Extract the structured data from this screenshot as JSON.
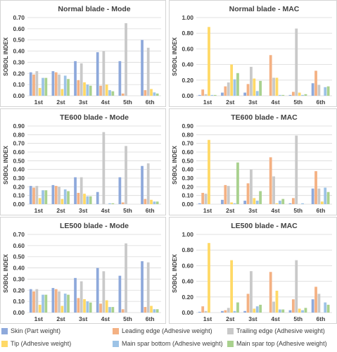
{
  "colors": {
    "skin": "#8EA9DB",
    "leading_edge": "#F4B183",
    "trailing_edge": "#C9C9C9",
    "tip": "#FFD966",
    "spar_bottom": "#9DC3E6",
    "spar_top": "#A9D18E",
    "grid": "#d9d9d9",
    "text": "#404040",
    "panel_border": "#d4d4d4"
  },
  "legend": [
    {
      "key": "skin",
      "label": "Skin (Part weight)"
    },
    {
      "key": "leading_edge",
      "label": "Leading edge (Adhesive weight)"
    },
    {
      "key": "trailing_edge",
      "label": "Trailing edge (Adhesive weight)"
    },
    {
      "key": "tip",
      "label": "Tip (Adhesive weight)"
    },
    {
      "key": "spar_bottom",
      "label": "Main spar bottom (Adhesive weight)"
    },
    {
      "key": "spar_top",
      "label": "Main spar top (Adhesive weight)"
    }
  ],
  "chart_data": [
    {
      "type": "bar",
      "title": "Normal blade - Mode",
      "ylabel": "SOBOL INDEX",
      "ylim": [
        0,
        0.7
      ],
      "yticks": [
        0,
        0.1,
        0.2,
        0.3,
        0.4,
        0.5,
        0.6,
        0.7
      ],
      "tick_decimals": 2,
      "categories": [
        "1st",
        "2st",
        "3st",
        "4st",
        "5th",
        "6th"
      ],
      "series": [
        {
          "key": "skin",
          "values": [
            0.21,
            0.22,
            0.31,
            0.39,
            0.31,
            0.5
          ]
        },
        {
          "key": "leading_edge",
          "values": [
            0.19,
            0.21,
            0.14,
            0.09,
            0.02,
            0.05
          ]
        },
        {
          "key": "trailing_edge",
          "values": [
            0.22,
            0.19,
            0.29,
            0.4,
            0.65,
            0.43
          ]
        },
        {
          "key": "tip",
          "values": [
            0.07,
            0.06,
            0.12,
            0.1,
            0.0,
            0.06
          ]
        },
        {
          "key": "spar_bottom",
          "values": [
            0.16,
            0.18,
            0.1,
            0.05,
            0.0,
            0.03
          ]
        },
        {
          "key": "spar_top",
          "values": [
            0.16,
            0.15,
            0.09,
            0.04,
            0.0,
            0.02
          ]
        }
      ]
    },
    {
      "type": "bar",
      "title": "Normal blade - MAC",
      "ylabel": "SOBOL INDEX",
      "ylim": [
        0,
        1.0
      ],
      "yticks": [
        0,
        0.2,
        0.4,
        0.6,
        0.8,
        1.0
      ],
      "tick_decimals": 2,
      "categories": [
        "1st",
        "2st",
        "3st",
        "4st",
        "5th",
        "6th"
      ],
      "series": [
        {
          "key": "skin",
          "values": [
            0.01,
            0.04,
            0.04,
            0.0,
            0.01,
            0.16
          ]
        },
        {
          "key": "leading_edge",
          "values": [
            0.08,
            0.12,
            0.15,
            0.52,
            0.05,
            0.32
          ]
        },
        {
          "key": "trailing_edge",
          "values": [
            0.02,
            0.17,
            0.37,
            0.23,
            0.86,
            0.14
          ]
        },
        {
          "key": "tip",
          "values": [
            0.88,
            0.4,
            0.22,
            0.23,
            0.04,
            0.0
          ]
        },
        {
          "key": "spar_bottom",
          "values": [
            0.01,
            0.21,
            0.06,
            0.01,
            0.01,
            0.11
          ]
        },
        {
          "key": "spar_top",
          "values": [
            0.01,
            0.29,
            0.19,
            0.01,
            0.02,
            0.12
          ]
        }
      ]
    },
    {
      "type": "bar",
      "title": "TE600 blade - Mode",
      "ylabel": "SOBOL INDEX",
      "ylim": [
        0,
        0.9
      ],
      "yticks": [
        0,
        0.1,
        0.2,
        0.3,
        0.4,
        0.5,
        0.6,
        0.7,
        0.8,
        0.9
      ],
      "tick_decimals": 2,
      "categories": [
        "1st",
        "2st",
        "3st",
        "4st",
        "5th",
        "6th"
      ],
      "series": [
        {
          "key": "skin",
          "values": [
            0.21,
            0.22,
            0.31,
            0.14,
            0.31,
            0.44
          ]
        },
        {
          "key": "leading_edge",
          "values": [
            0.19,
            0.21,
            0.13,
            0.0,
            0.02,
            0.06
          ]
        },
        {
          "key": "trailing_edge",
          "values": [
            0.21,
            0.2,
            0.31,
            0.83,
            0.67,
            0.47
          ]
        },
        {
          "key": "tip",
          "values": [
            0.07,
            0.06,
            0.12,
            0.0,
            0.0,
            0.05
          ]
        },
        {
          "key": "spar_bottom",
          "values": [
            0.16,
            0.17,
            0.09,
            0.01,
            0.0,
            0.03
          ]
        },
        {
          "key": "spar_top",
          "values": [
            0.16,
            0.15,
            0.09,
            0.01,
            0.0,
            0.03
          ]
        }
      ]
    },
    {
      "type": "bar",
      "title": "TE600 blade - MAC",
      "ylabel": "SOBOL INDEX",
      "ylim": [
        0,
        0.9
      ],
      "yticks": [
        0,
        0.1,
        0.2,
        0.3,
        0.4,
        0.5,
        0.6,
        0.7,
        0.8,
        0.9
      ],
      "tick_decimals": 2,
      "categories": [
        "1st",
        "2st",
        "3st",
        "4st",
        "5th",
        "6th"
      ],
      "series": [
        {
          "key": "skin",
          "values": [
            0.01,
            0.05,
            0.04,
            0.0,
            0.01,
            0.18
          ]
        },
        {
          "key": "leading_edge",
          "values": [
            0.13,
            0.22,
            0.24,
            0.54,
            0.07,
            0.38
          ]
        },
        {
          "key": "trailing_edge",
          "values": [
            0.12,
            0.21,
            0.4,
            0.32,
            0.79,
            0.18
          ]
        },
        {
          "key": "tip",
          "values": [
            0.74,
            0.02,
            0.07,
            0.01,
            0.0,
            0.03
          ]
        },
        {
          "key": "spar_bottom",
          "values": [
            0.0,
            0.01,
            0.04,
            0.04,
            0.01,
            0.19
          ]
        },
        {
          "key": "spar_top",
          "values": [
            0.0,
            0.48,
            0.15,
            0.06,
            0.0,
            0.14
          ]
        }
      ]
    },
    {
      "type": "bar",
      "title": "LE500 blade - Mode",
      "ylabel": "SOBOL INDEX",
      "ylim": [
        0,
        0.7
      ],
      "yticks": [
        0,
        0.1,
        0.2,
        0.3,
        0.4,
        0.5,
        0.6,
        0.7
      ],
      "tick_decimals": 2,
      "categories": [
        "1st",
        "2st",
        "3st",
        "4st",
        "5th",
        "6th"
      ],
      "series": [
        {
          "key": "skin",
          "values": [
            0.21,
            0.22,
            0.31,
            0.4,
            0.33,
            0.46
          ]
        },
        {
          "key": "leading_edge",
          "values": [
            0.19,
            0.21,
            0.13,
            0.08,
            0.03,
            0.05
          ]
        },
        {
          "key": "trailing_edge",
          "values": [
            0.21,
            0.19,
            0.28,
            0.37,
            0.62,
            0.45
          ]
        },
        {
          "key": "tip",
          "values": [
            0.07,
            0.06,
            0.12,
            0.11,
            0.0,
            0.06
          ]
        },
        {
          "key": "spar_bottom",
          "values": [
            0.16,
            0.17,
            0.1,
            0.05,
            0.0,
            0.03
          ]
        },
        {
          "key": "spar_top",
          "values": [
            0.16,
            0.16,
            0.09,
            0.05,
            0.0,
            0.03
          ]
        }
      ]
    },
    {
      "type": "bar",
      "title": "LE500 blade - MAC",
      "ylabel": "SOBOL INDEX",
      "ylim": [
        0,
        1.0
      ],
      "yticks": [
        0,
        0.2,
        0.4,
        0.6,
        0.8,
        1.0
      ],
      "tick_decimals": 2,
      "categories": [
        "1st",
        "2st",
        "3st",
        "4st",
        "5th",
        "6th"
      ],
      "series": [
        {
          "key": "skin",
          "values": [
            0.01,
            0.02,
            0.02,
            0.0,
            0.03,
            0.17
          ]
        },
        {
          "key": "leading_edge",
          "values": [
            0.08,
            0.03,
            0.24,
            0.52,
            0.17,
            0.33
          ]
        },
        {
          "key": "trailing_edge",
          "values": [
            0.02,
            0.06,
            0.53,
            0.14,
            0.67,
            0.24
          ]
        },
        {
          "key": "tip",
          "values": [
            0.89,
            0.67,
            0.05,
            0.28,
            0.05,
            0.0
          ]
        },
        {
          "key": "spar_bottom",
          "values": [
            0.0,
            0.02,
            0.08,
            0.04,
            0.03,
            0.13
          ]
        },
        {
          "key": "spar_top",
          "values": [
            0.0,
            0.13,
            0.1,
            0.04,
            0.06,
            0.1
          ]
        }
      ]
    }
  ]
}
